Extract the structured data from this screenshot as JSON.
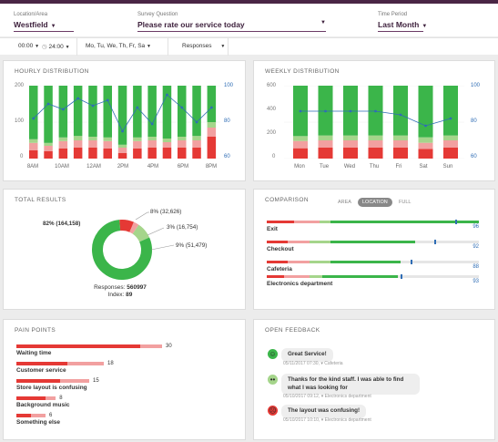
{
  "filters": {
    "location": {
      "label": "Location/Area",
      "value": "Westfield"
    },
    "question": {
      "label": "Survey Question",
      "value": "Please rate our service today"
    },
    "period": {
      "label": "Time Period",
      "value": "Last Month"
    }
  },
  "subbar": {
    "start_time": "00:00",
    "end_time": "24:00",
    "days": "Mo, Tu, We, Th, Fr, Sa",
    "metric": "Responses"
  },
  "colors": {
    "red": "#e53935",
    "pink": "#f2a0a0",
    "lightgreen": "#a5d58b",
    "green": "#3bb54a",
    "line": "#2f6db5",
    "header": "#3c1f3b"
  },
  "hourly": {
    "title": "HOURLY DISTRIBUTION",
    "y_left": [
      "200",
      "100",
      "0"
    ],
    "y_right": [
      "100",
      "80",
      "60"
    ],
    "x_labels": [
      "8AM",
      "10AM",
      "12AM",
      "2PM",
      "4PM",
      "6PM",
      "8PM"
    ]
  },
  "weekly": {
    "title": "WEEKLY DISTRIBUTION",
    "y_left": [
      "600",
      "400",
      "200",
      "0"
    ],
    "y_right": [
      "100",
      "80",
      "60"
    ],
    "x_labels": [
      "Mon",
      "Tue",
      "Wed",
      "Thu",
      "Fri",
      "Sat",
      "Sun"
    ]
  },
  "chart_data": [
    {
      "type": "bar",
      "title": "HOURLY DISTRIBUTION",
      "stacked": true,
      "categories": [
        "8AM",
        "9AM",
        "10AM",
        "11AM",
        "12AM",
        "1PM",
        "2PM",
        "3PM",
        "4PM",
        "5PM",
        "6PM",
        "7PM",
        "8PM"
      ],
      "series": [
        {
          "color": "#e53935",
          "values": [
            23,
            20,
            28,
            30,
            30,
            28,
            15,
            28,
            30,
            30,
            30,
            30,
            60
          ]
        },
        {
          "color": "#f2a0a0",
          "values": [
            20,
            15,
            20,
            20,
            20,
            20,
            15,
            20,
            20,
            15,
            20,
            20,
            25
          ]
        },
        {
          "color": "#a5d58b",
          "values": [
            10,
            8,
            10,
            12,
            10,
            10,
            8,
            10,
            10,
            10,
            10,
            12,
            15
          ]
        },
        {
          "color": "#3bb54a",
          "values": [
            147,
            157,
            142,
            138,
            140,
            142,
            162,
            142,
            140,
            145,
            140,
            138,
            100
          ]
        }
      ],
      "line": {
        "axis": "right",
        "values": [
          82,
          90,
          87,
          93,
          89,
          92,
          75,
          88,
          79,
          95,
          88,
          80,
          88
        ]
      },
      "ylim": [
        0,
        200
      ],
      "ylim_right": [
        60,
        100
      ]
    },
    {
      "type": "bar",
      "title": "WEEKLY DISTRIBUTION",
      "stacked": true,
      "categories": [
        "Mon",
        "Tue",
        "Wed",
        "Thu",
        "Fri",
        "Sat",
        "Sun"
      ],
      "series": [
        {
          "color": "#e53935",
          "values": [
            85,
            90,
            90,
            90,
            90,
            80,
            90
          ]
        },
        {
          "color": "#f2a0a0",
          "values": [
            60,
            60,
            60,
            60,
            60,
            50,
            60
          ]
        },
        {
          "color": "#a5d58b",
          "values": [
            40,
            40,
            40,
            40,
            40,
            45,
            40
          ]
        },
        {
          "color": "#3bb54a",
          "values": [
            415,
            410,
            410,
            410,
            410,
            425,
            410
          ]
        }
      ],
      "line": {
        "axis": "right",
        "values": [
          86,
          86,
          86,
          86,
          84,
          78,
          82
        ]
      },
      "ylim": [
        0,
        600
      ],
      "ylim_right": [
        60,
        100
      ]
    },
    {
      "type": "pie",
      "title": "TOTAL RESULTS",
      "slices": [
        {
          "label": "82% (164,158)",
          "value": 82,
          "color": "#3bb54a"
        },
        {
          "label": "8% (32,626)",
          "value": 8,
          "color": "#e53935"
        },
        {
          "label": "3% (16,754)",
          "value": 3,
          "color": "#f2a0a0"
        },
        {
          "label": "9% (51,479)",
          "value": 9,
          "color": "#a5d58b"
        }
      ]
    }
  ],
  "total": {
    "title": "TOTAL RESULTS",
    "green_label": "82% (164,158)",
    "red_label": "8% (32,626)",
    "pink_label": "3% (16,754)",
    "lightgreen_label": "9% (51,479)",
    "responses_label": "Responses:",
    "responses_value": "560997",
    "index_label": "Index:",
    "index_value": "89"
  },
  "comparison": {
    "title": "COMPARISON",
    "tabs": [
      "AREA",
      "LOCATION",
      "FULL"
    ],
    "active_tab": "LOCATION",
    "rows": [
      {
        "name": "Exit",
        "value": "96",
        "red": 13,
        "pink": 12,
        "lightgreen": 5,
        "green": 70,
        "marker": 89
      },
      {
        "name": "Checkout",
        "value": "92",
        "red": 10,
        "pink": 10,
        "lightgreen": 10,
        "green": 40,
        "marker": 79
      },
      {
        "name": "Cafeteria",
        "value": "88",
        "red": 10,
        "pink": 10,
        "lightgreen": 10,
        "green": 33,
        "marker": 68
      },
      {
        "name": "Electronics department",
        "value": "93",
        "red": 8,
        "pink": 12,
        "lightgreen": 6,
        "green": 36,
        "marker": 63
      }
    ]
  },
  "pain_points": {
    "title": "PAIN POINTS",
    "items": [
      {
        "label": "Waiting time",
        "value": "30",
        "red": 0.85,
        "pink": 0.15
      },
      {
        "label": "Customer service",
        "value": "18",
        "red": 0.35,
        "pink": 0.25
      },
      {
        "label": "Store layout is confusing",
        "value": "15",
        "red": 0.3,
        "pink": 0.2
      },
      {
        "label": "Background music",
        "value": "8",
        "red": 0.2,
        "pink": 0.07
      },
      {
        "label": "Something else",
        "value": "6",
        "red": 0.1,
        "pink": 0.1
      }
    ]
  },
  "feedback": {
    "title": "OPEN FEEDBACK",
    "items": [
      {
        "mood": "happy",
        "text": "Great Service!",
        "meta": "05/11/2017 07:30,",
        "location": "Cafeteria"
      },
      {
        "mood": "neutral",
        "text": "Thanks for the kind staff. I was able to find what I was looking for",
        "meta": "05/10/2017 09:12,",
        "location": "Electronics department"
      },
      {
        "mood": "sad",
        "text": "The layout was confusing!",
        "meta": "05/10/2017 10:10,",
        "location": "Electronics department"
      }
    ]
  }
}
